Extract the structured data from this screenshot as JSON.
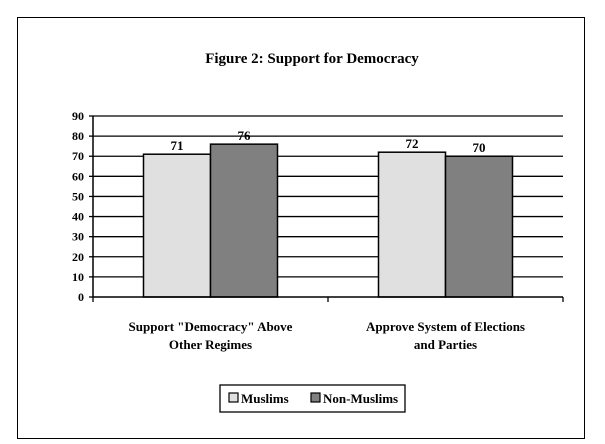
{
  "chart_data": {
    "type": "bar",
    "title": "Figure 2:  Support for Democracy",
    "categories": [
      [
        "Support \"Democracy\" Above",
        "Other Regimes"
      ],
      [
        "Approve System of Elections",
        "and Parties"
      ]
    ],
    "series": [
      {
        "name": "Muslims",
        "values": [
          71,
          72
        ],
        "color": "#e0e0e0"
      },
      {
        "name": "Non-Muslims",
        "values": [
          76,
          70
        ],
        "color": "#808080"
      }
    ],
    "ylim": [
      0,
      90
    ],
    "yticks": [
      0,
      10,
      20,
      30,
      40,
      50,
      60,
      70,
      80,
      90
    ],
    "grid": true,
    "legend": "bottom"
  }
}
